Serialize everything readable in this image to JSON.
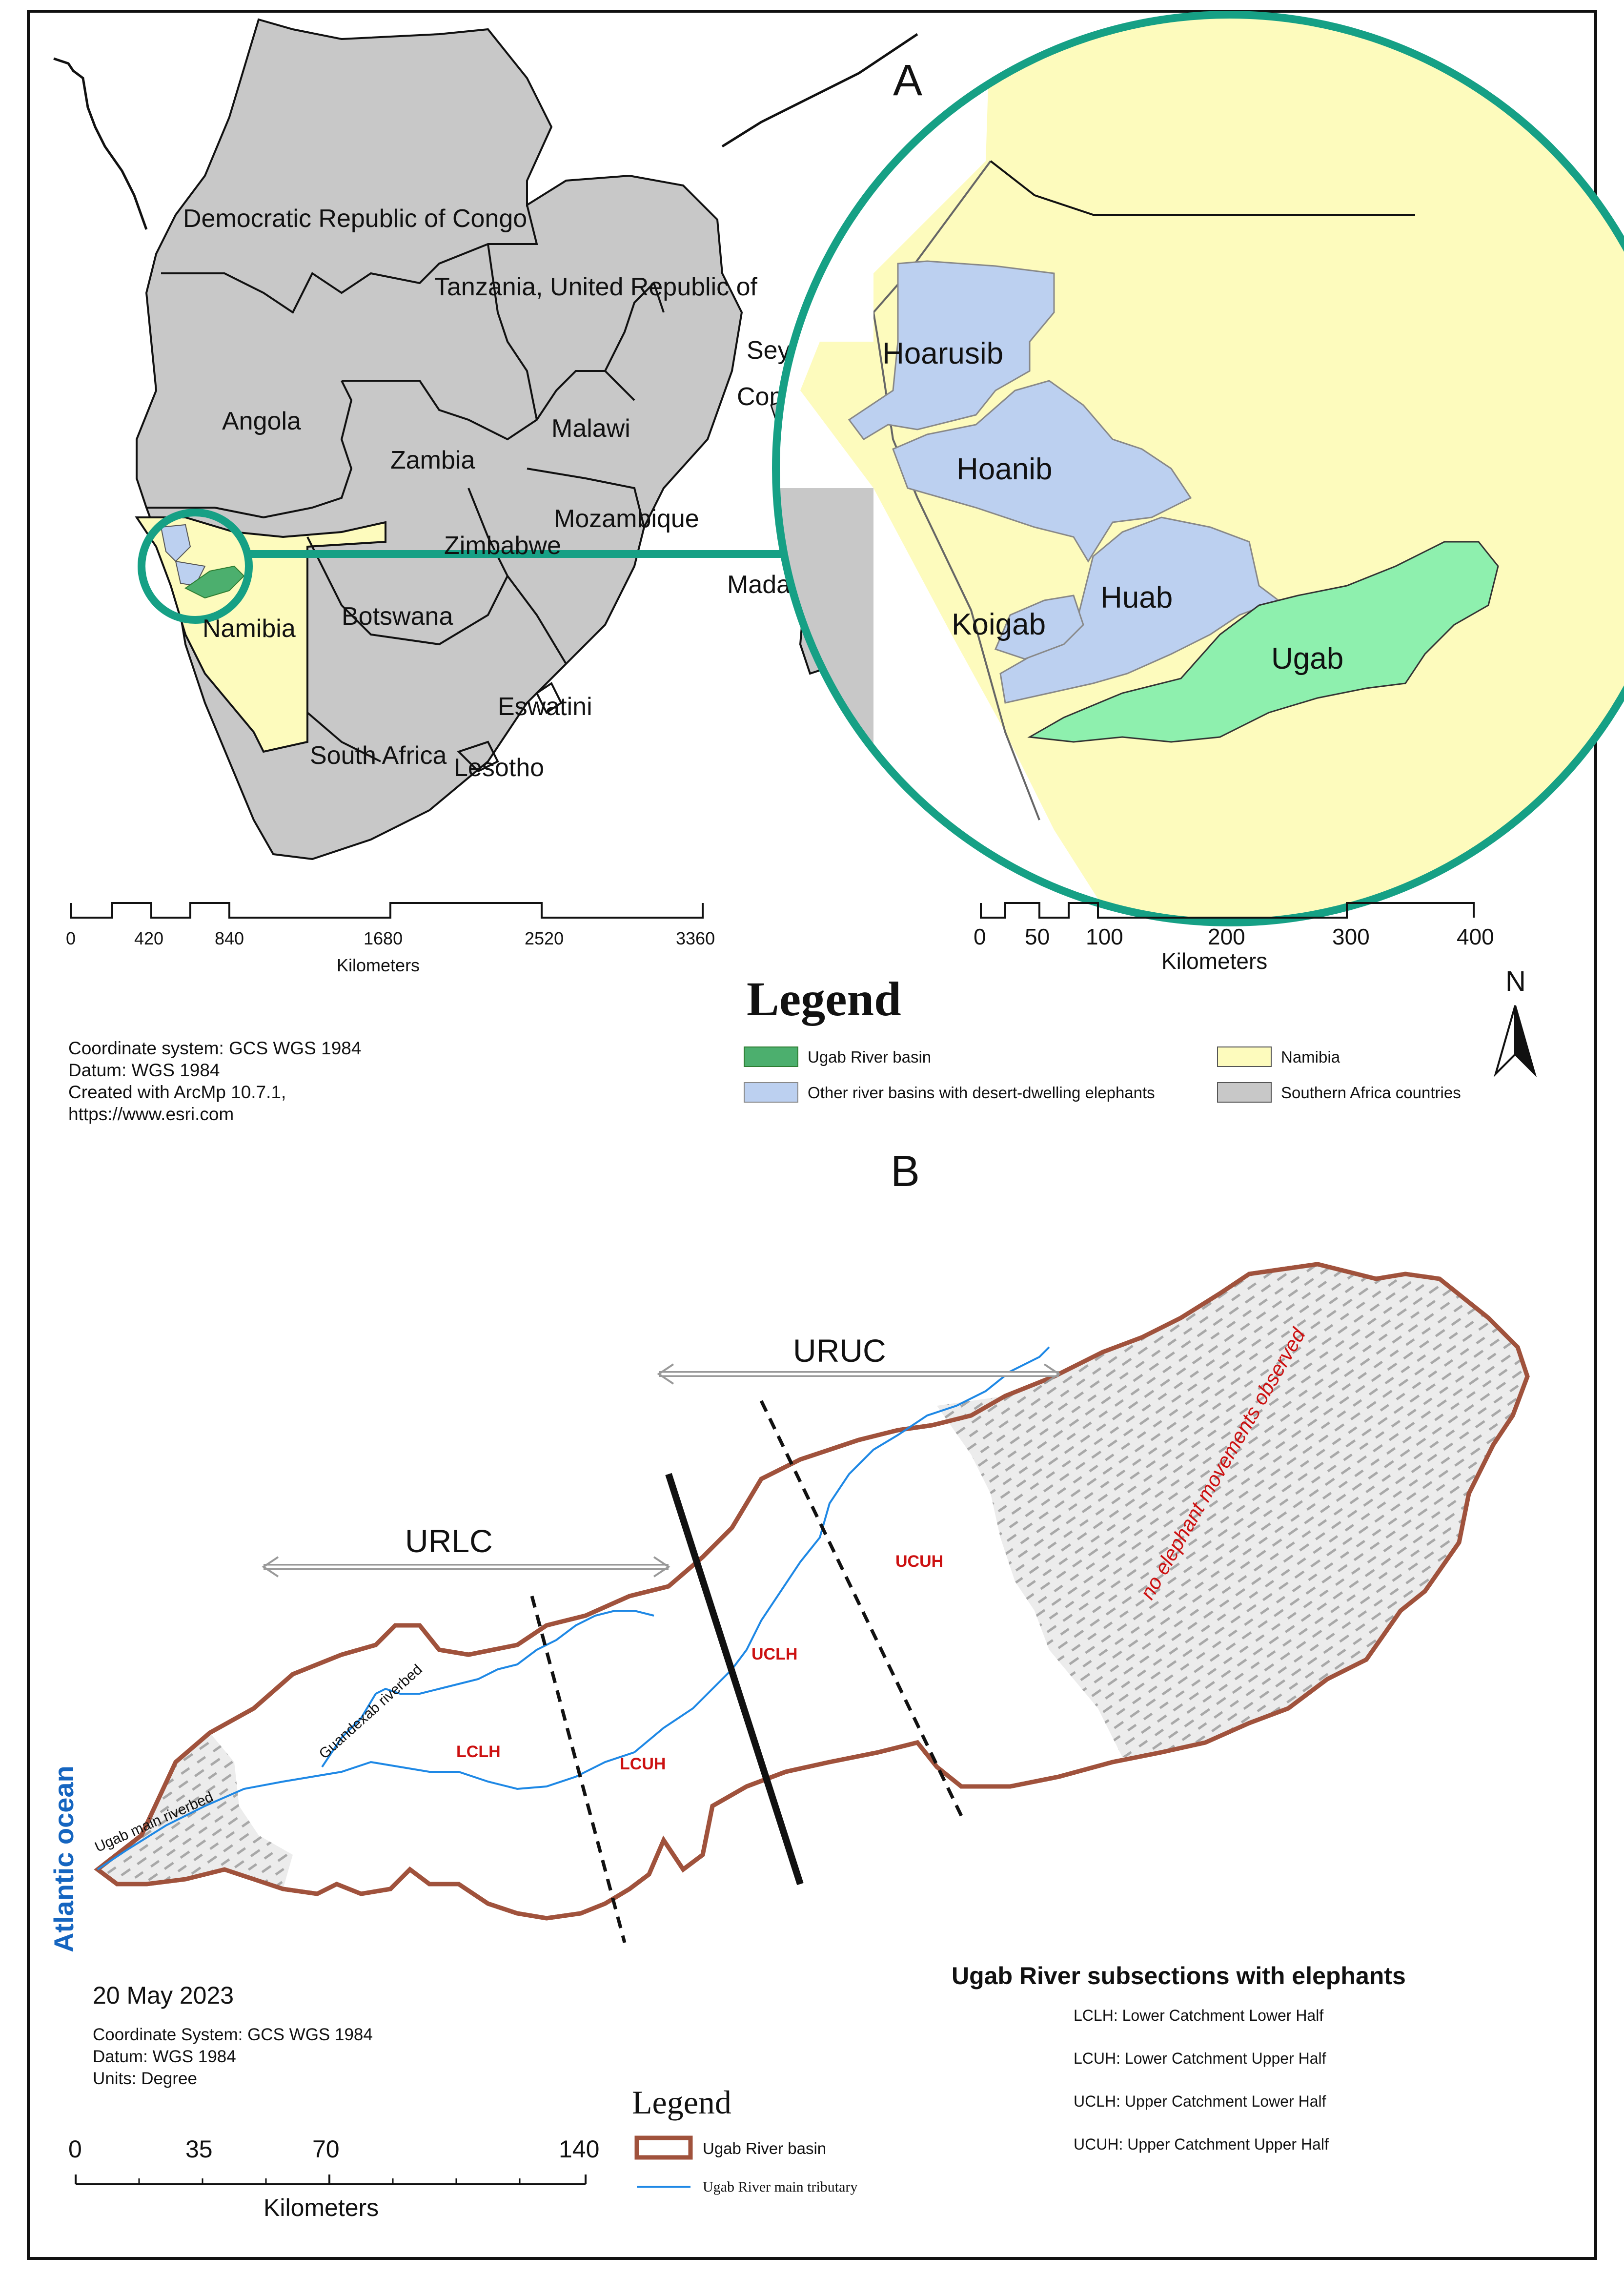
{
  "panel_a": {
    "label": "A",
    "countries": [
      "Democratic Republic of Congo",
      "Tanzania, United Republic of",
      "Angola",
      "Zambia",
      "Malawi",
      "Mozambique",
      "Zimbabwe",
      "Namibia",
      "Botswana",
      "Eswatini",
      "South Africa",
      "Lesotho",
      "Madagascar",
      "Seychelles",
      "Comoros"
    ],
    "country_labels_visible": {
      "drc": "Democratic Republic of Congo",
      "tanzania": "Tanzania, United Republic of",
      "angola": "Angola",
      "zambia": "Zambia",
      "malawi": "Malawi",
      "mozambique": "Mozambique",
      "zimbabwe": "Zimbabwe",
      "namibia": "Namibia",
      "botswana": "Botswana",
      "eswatini": "Eswatini",
      "south_africa": "South Africa",
      "lesotho": "Lesotho",
      "madagascar": "Madagascar",
      "seychelles": "Sey",
      "comoros": "Como"
    },
    "inset_basins": {
      "hoarusib": "Hoarusib",
      "hoanib": "Hoanib",
      "koigab": "Koigab",
      "huab": "Huab",
      "ugab": "Ugab"
    },
    "scale_left": {
      "ticks": [
        "0",
        "420",
        "840",
        "1680",
        "2520",
        "3360"
      ],
      "unit": "Kilometers"
    },
    "scale_right": {
      "ticks": [
        "0",
        "50",
        "100",
        "200",
        "300",
        "400"
      ],
      "unit": "Kilometers"
    },
    "credits": {
      "line1": "Coordinate system: GCS WGS 1984",
      "line2": "Datum: WGS 1984",
      "line3": "Created with ArcMp 10.7.1,",
      "line4": "https://www.esri.com"
    },
    "legend": {
      "title": "Legend",
      "items": [
        {
          "label": "Ugab River basin",
          "color": "#4caf6e"
        },
        {
          "label": "Other river basins with desert-dwelling elephants",
          "color": "#bcd0f0"
        },
        {
          "label": "Namibia",
          "color": "#fdfbbd"
        },
        {
          "label": "Southern Africa countries",
          "color": "#c8c8c8"
        }
      ]
    },
    "north_label": "N"
  },
  "panel_b": {
    "label": "B",
    "zones": {
      "uruc": "URUC",
      "urlc": "URLC"
    },
    "subsections": {
      "lclh": "LCLH",
      "lcuh": "LCUH",
      "uclh": "UCLH",
      "ucuh": "UCUH"
    },
    "riverbed_labels": {
      "main": "Ugab main riverbed",
      "guandexab": "Guandexab riverbed"
    },
    "no_movement_text": "no elephant movements observed",
    "ocean_label": "Atlantic ocean",
    "date": "20 May 2023",
    "credits": {
      "line1": "Coordinate System: GCS WGS 1984",
      "line2": "Datum: WGS 1984",
      "line3": "Units: Degree"
    },
    "scale": {
      "ticks": [
        "0",
        "35",
        "70",
        "140"
      ],
      "unit": "Kilometers"
    },
    "legend": {
      "title": "Legend",
      "items": [
        {
          "label": "Ugab River basin",
          "color": "#a0523c"
        },
        {
          "label": "Ugab River main tributary",
          "color": "#1e88e5"
        }
      ]
    },
    "subsection_legend": {
      "title": "Ugab River subsections with elephants",
      "items": [
        "LCLH: Lower Catchment Lower Half",
        "LCUH: Lower Catchment Upper Half",
        "UCLH: Upper Catchment Lower Half",
        "UCUH: Upper Catchment Upper Half"
      ]
    }
  },
  "colors": {
    "countries": "#c8c8c8",
    "namibia": "#fdfbbd",
    "ugab": "#4caf6e",
    "ugab_inset": "#8ef0ae",
    "other_basins": "#bcd0f0",
    "inset_ring": "#16a085",
    "basin_outline": "#a0523c",
    "river": "#1e88e5",
    "subsection_text": "#cc1111",
    "ocean_text": "#1565c0"
  }
}
